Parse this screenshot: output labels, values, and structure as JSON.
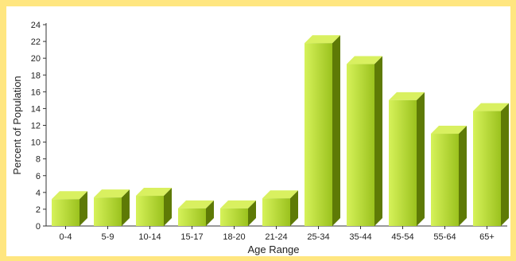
{
  "chart_data": {
    "type": "bar",
    "style": "3d",
    "title": "",
    "xlabel": "Age Range",
    "ylabel": "Percent of Population",
    "categories": [
      "0-4",
      "5-9",
      "10-14",
      "15-17",
      "18-20",
      "21-24",
      "25-34",
      "35-44",
      "45-54",
      "55-64",
      "65+"
    ],
    "values": [
      3.2,
      3.4,
      3.6,
      2.1,
      2.1,
      3.3,
      21.8,
      19.3,
      15.0,
      11.0,
      13.7
    ],
    "ylim": [
      0,
      24
    ],
    "yticks": [
      0,
      2,
      4,
      6,
      8,
      10,
      12,
      14,
      16,
      18,
      20,
      22,
      24
    ],
    "grid": false,
    "legend": "none",
    "colors": {
      "background": "#FFE680",
      "bar_front_light": "#D6F25A",
      "bar_front_dark": "#9BC21E",
      "bar_top": "#D9F060",
      "bar_side": "#5E7A06"
    }
  }
}
